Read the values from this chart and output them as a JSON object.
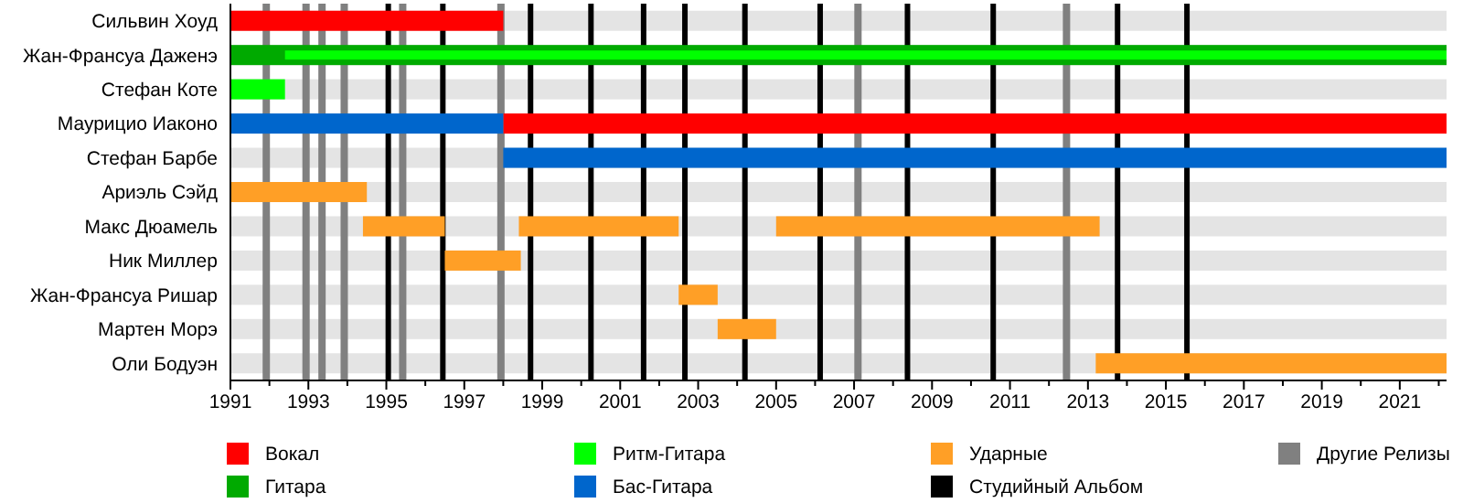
{
  "chart_data": {
    "type": "bar",
    "orientation": "horizontal",
    "legend": "bottom",
    "grid": false,
    "categories": [
      "Сильвин Хоуд",
      "Жан-Франсуа Даженэ",
      "Стефан Коте",
      "Маурицио Иаконо",
      "Стефан Барбе",
      "Ариэль Сэйд",
      "Макс Дюамель",
      "Ник Миллер",
      "Жан-Франсуа Ришар",
      "Мартен Морэ",
      "Оли Бодуэн"
    ],
    "xlim": [
      1991,
      2022.2
    ],
    "xticks": [
      1991,
      {
        "value": 1992,
        "label": null
      },
      1993,
      {
        "value": 1994,
        "label": null
      },
      1995,
      {
        "value": 1996,
        "label": null
      },
      1997,
      {
        "value": 1998,
        "label": null
      },
      1999,
      {
        "value": 2000,
        "label": null
      },
      2001,
      {
        "value": 2002,
        "label": null
      },
      2003,
      {
        "value": 2004,
        "label": null
      },
      2005,
      {
        "value": 2006,
        "label": null
      },
      2007,
      {
        "value": 2008,
        "label": null
      },
      2009,
      {
        "value": 2010,
        "label": null
      },
      2011,
      {
        "value": 2012,
        "label": null
      },
      2013,
      {
        "value": 2014,
        "label": null
      },
      2015,
      {
        "value": 2016,
        "label": null
      },
      2017,
      {
        "value": 2018,
        "label": null
      },
      2019,
      {
        "value": 2020,
        "label": null
      },
      2021,
      {
        "value": 2022,
        "label": null
      }
    ],
    "series": [
      {
        "name": "Вокал",
        "color": "#ff0000",
        "values": [
          7,
          null,
          null,
          24.2,
          null,
          null,
          null,
          null,
          null,
          null,
          null
        ],
        "base": [
          1991,
          null,
          null,
          1998,
          null,
          null,
          null,
          null,
          null,
          null,
          null
        ]
      },
      {
        "name": "Гитара",
        "color": "#00aa00",
        "values": [
          null,
          31.2,
          null,
          null,
          null,
          null,
          null,
          null,
          null,
          null,
          null
        ],
        "base": [
          null,
          1991,
          null,
          null,
          null,
          null,
          null,
          null,
          null,
          null,
          null
        ]
      },
      {
        "name": "Ритм-Гитара",
        "color": "#00ff00",
        "values": [
          null,
          29.8,
          1.4,
          null,
          null,
          null,
          null,
          null,
          null,
          null,
          null
        ],
        "base": [
          null,
          1992.4,
          1991,
          null,
          null,
          null,
          null,
          null,
          null,
          null,
          null
        ]
      },
      {
        "name": "Бас-Гитара",
        "color": "#0066cc",
        "values": [
          null,
          null,
          null,
          7,
          24.2,
          null,
          null,
          null,
          null,
          null,
          null
        ],
        "base": [
          null,
          null,
          null,
          1991,
          1998,
          null,
          null,
          null,
          null,
          null,
          null
        ]
      },
      {
        "name": "Ударные",
        "color": "#ff9f26",
        "values": [
          null,
          null,
          null,
          null,
          null,
          3.5,
          2.1,
          1.95,
          1,
          1.5,
          9
        ],
        "base": [
          null,
          null,
          null,
          null,
          null,
          1991,
          1994.4,
          1996.5,
          2002.5,
          2003.5,
          2013.2
        ]
      },
      {
        "name": "Студийный Альбом",
        "color": "#000000",
        "values": [
          null,
          null,
          null,
          null,
          null,
          null,
          null,
          null,
          null,
          null,
          null
        ]
      },
      {
        "name": "Другие Релизы",
        "color": "#808080",
        "values": [
          null,
          null,
          null,
          null,
          null,
          null,
          null,
          null,
          null,
          null,
          null
        ]
      },
      {
        "color": "#ff9f26",
        "values": [
          null,
          null,
          null,
          null,
          null,
          null,
          4.1,
          null,
          null,
          null,
          null
        ],
        "base": [
          null,
          null,
          null,
          null,
          null,
          null,
          1998.4,
          null,
          null,
          null,
          null
        ]
      },
      {
        "color": "#ff9f26",
        "values": [
          null,
          null,
          null,
          null,
          null,
          null,
          8.3,
          null,
          null,
          null,
          null
        ],
        "base": [
          null,
          null,
          null,
          null,
          null,
          null,
          2005,
          null,
          null,
          null,
          null
        ]
      }
    ],
    "ref_lines": [
      {
        "axis": "x",
        "value": 1991.92,
        "color": "#808080"
      },
      {
        "axis": "x",
        "value": 1992.94,
        "color": "#808080"
      },
      {
        "axis": "x",
        "value": 1993.35,
        "color": "#808080"
      },
      {
        "axis": "x",
        "value": 1993.92,
        "color": "#808080"
      },
      {
        "axis": "x",
        "value": 1995.05,
        "color": "#000000"
      },
      {
        "axis": "x",
        "value": 1995.42,
        "color": "#808080"
      },
      {
        "axis": "x",
        "value": 1996.45,
        "color": "#000000"
      },
      {
        "axis": "x",
        "value": 1997.94,
        "color": "#808080"
      },
      {
        "axis": "x",
        "value": 1998.7,
        "color": "#000000"
      },
      {
        "axis": "x",
        "value": 2000.25,
        "color": "#000000"
      },
      {
        "axis": "x",
        "value": 2001.6,
        "color": "#000000"
      },
      {
        "axis": "x",
        "value": 2002.66,
        "color": "#000000"
      },
      {
        "axis": "x",
        "value": 2004.2,
        "color": "#000000"
      },
      {
        "axis": "x",
        "value": 2006.13,
        "color": "#000000"
      },
      {
        "axis": "x",
        "value": 2007.1,
        "color": "#808080"
      },
      {
        "axis": "x",
        "value": 2008.37,
        "color": "#000000"
      },
      {
        "axis": "x",
        "value": 2010.57,
        "color": "#000000"
      },
      {
        "axis": "x",
        "value": 2012.45,
        "color": "#808080"
      },
      {
        "axis": "x",
        "value": 2013.76,
        "color": "#000000"
      },
      {
        "axis": "x",
        "value": 2015.54,
        "color": "#000000"
      }
    ]
  }
}
